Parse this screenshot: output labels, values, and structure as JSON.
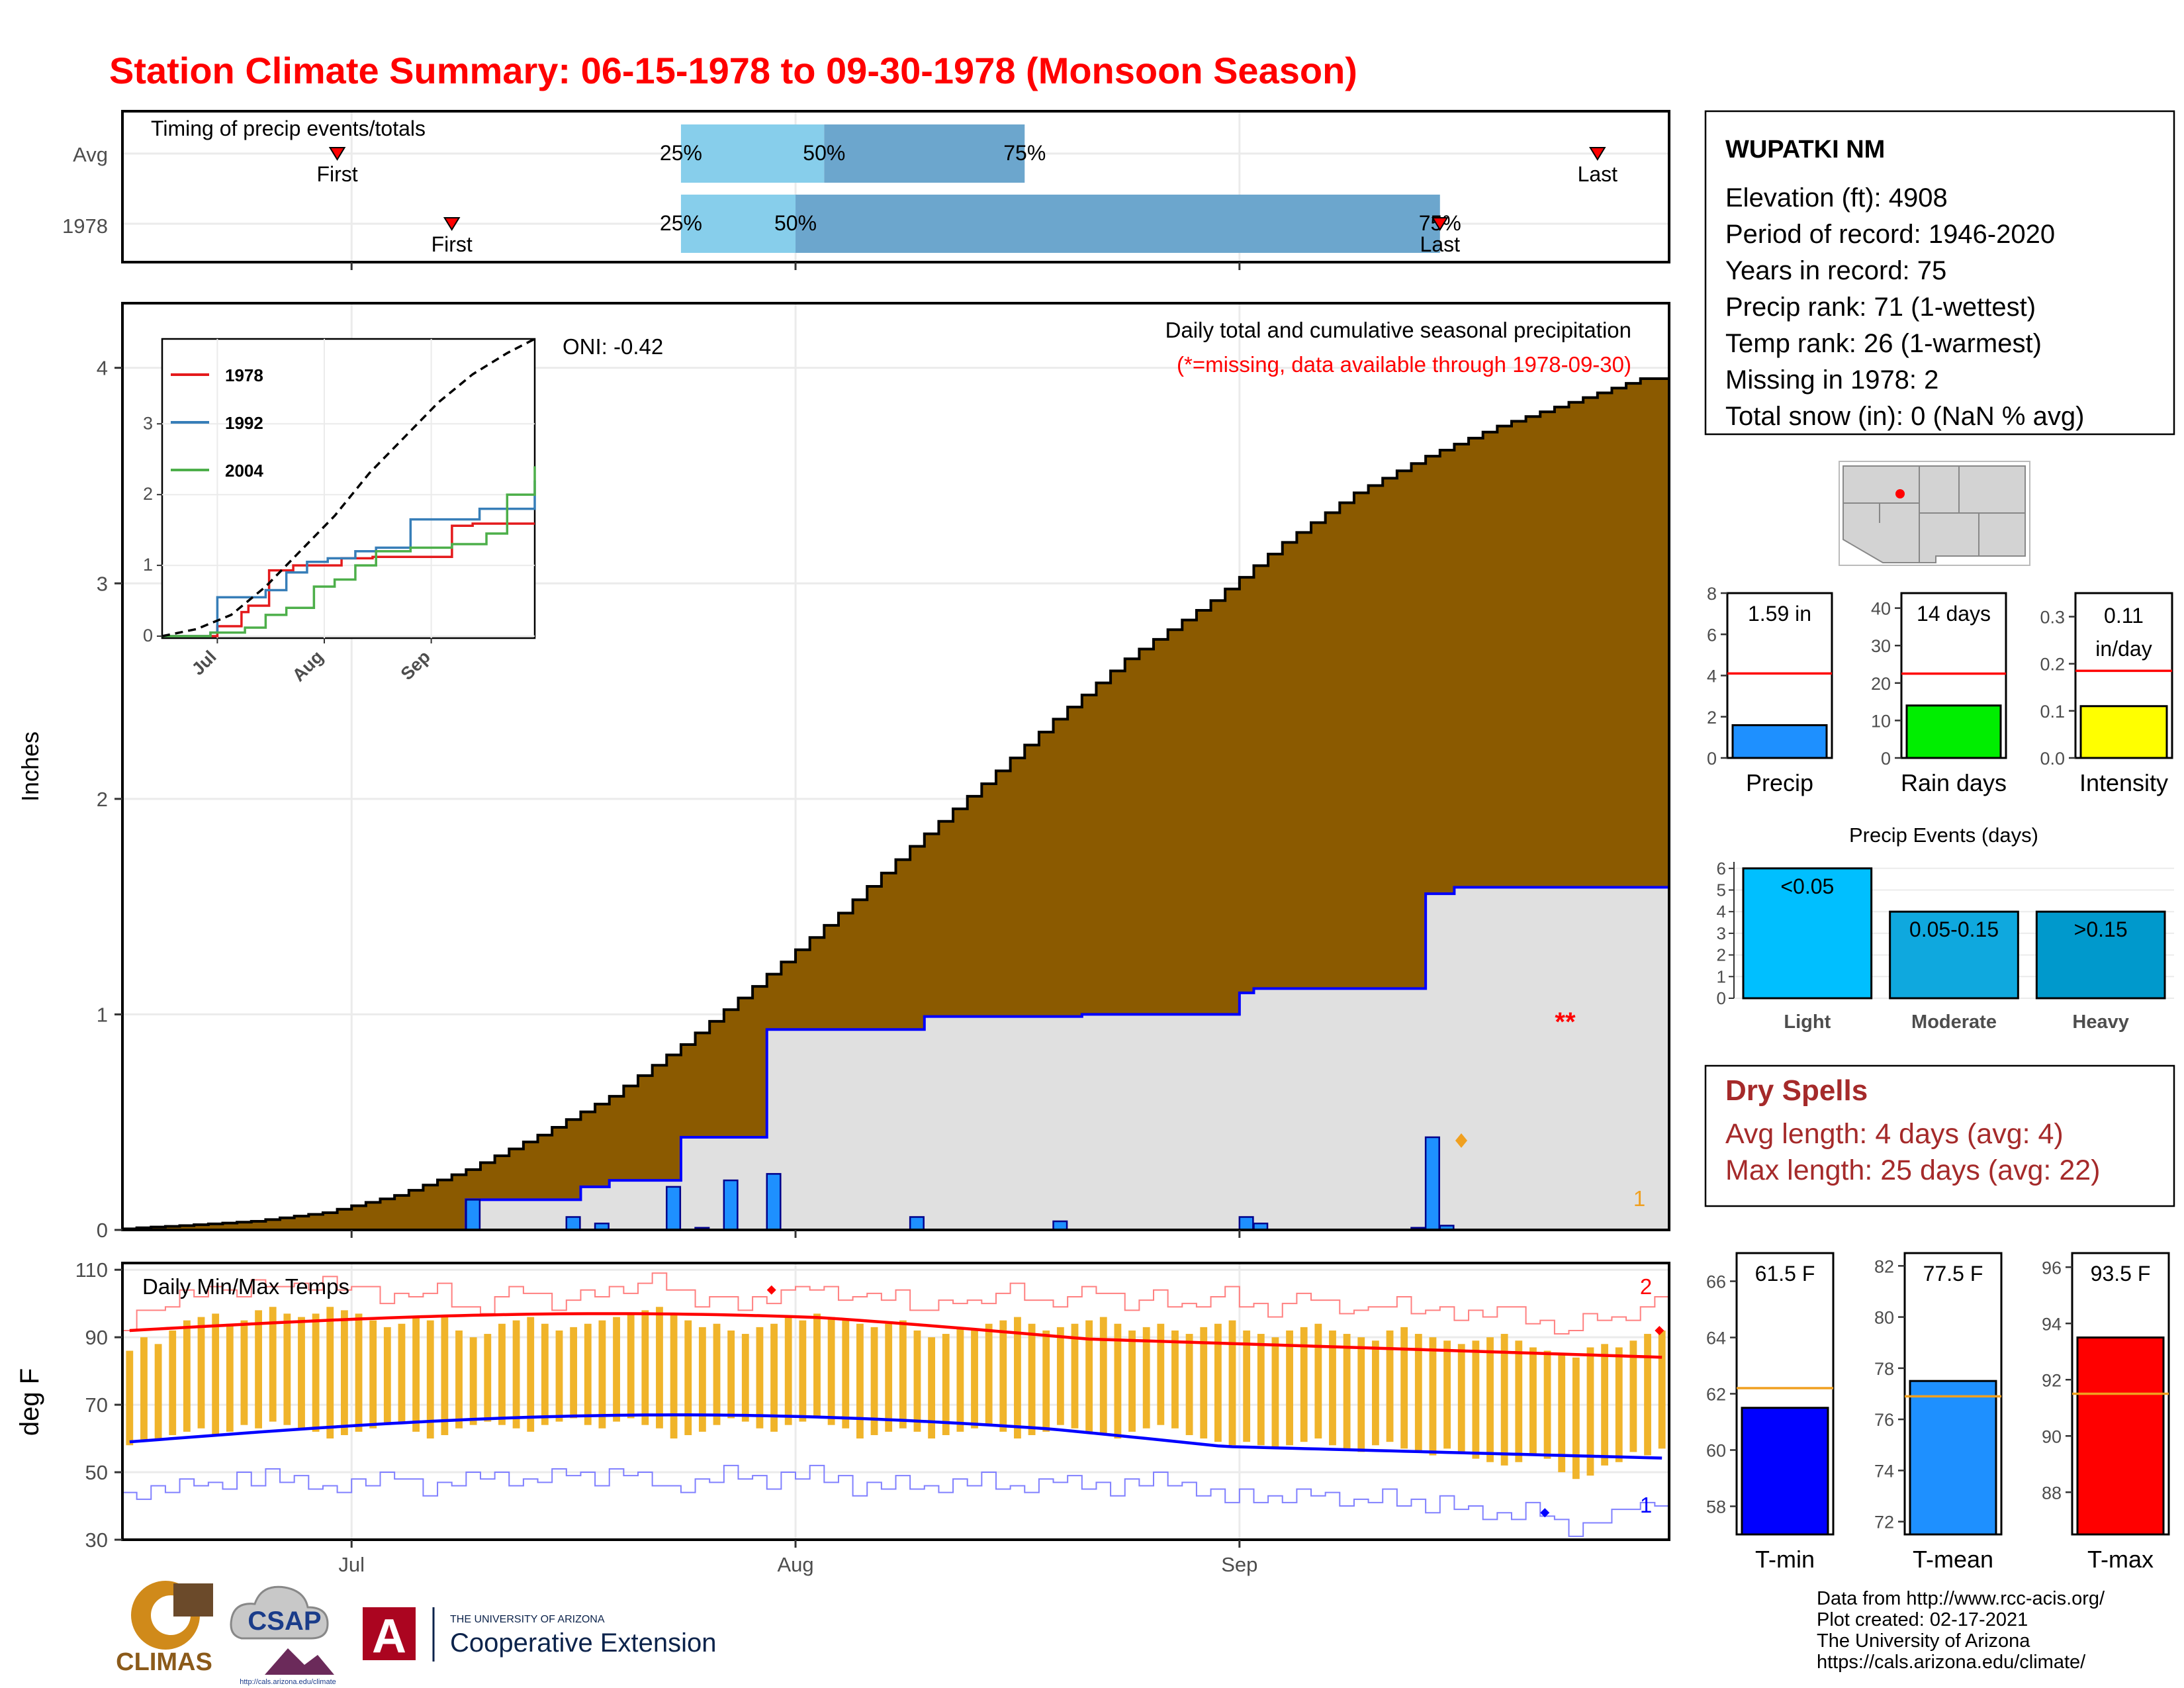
{
  "title": "Station Climate Summary: 06-15-1978 to 09-30-1978 (Monsoon Season)",
  "colors": {
    "title": "#ff0000",
    "precip_cum": "#8b5a00",
    "precip_avg_fill": "#e0e0e0",
    "precip_line": "#0000ff",
    "daily_bar": "#1e90ff",
    "temp_bar": "#f0b42a",
    "tmax_avg": "#ff0000",
    "tmin_avg": "#0000ff",
    "light_blue": "#87ceeb",
    "mid_blue": "#6ca6cd",
    "dry_spells": "#a52a2a"
  },
  "timing": {
    "title": "Timing of precip events/totals",
    "rows": [
      {
        "label": "Avg",
        "first_label": "First",
        "last_label": "Last",
        "first": "1978-06-30",
        "last": "1978-09-26",
        "p25": "1978-07-24",
        "p50": "1978-08-03",
        "p75": "1978-08-17",
        "p25_label": "25%",
        "p50_label": "50%",
        "p75_label": "75%"
      },
      {
        "label": "1978",
        "first_label": "First",
        "last_label": "Last",
        "first": "1978-07-08",
        "last": "1978-09-15",
        "p25": "1978-07-24",
        "p50": "1978-08-01",
        "p75": "1978-09-15",
        "p25_label": "25%",
        "p50_label": "50%",
        "p75_label": "75%"
      }
    ]
  },
  "precip_panel": {
    "ylabel": "Inches",
    "oni": "ONI: -0.42",
    "subtitle": "Daily total and cumulative seasonal precipitation",
    "missing_note": "(*=missing, data available through 1978-09-30)",
    "missing_marker": "**",
    "count_label": "1",
    "yticks": [
      "0",
      "1",
      "2",
      "3",
      "4"
    ],
    "ylim": [
      0,
      4.3
    ]
  },
  "temp_panel": {
    "ylabel": "deg F",
    "title": "Daily Min/Max Temps",
    "yticks": [
      "30",
      "50",
      "70",
      "90",
      "110"
    ],
    "ylim": [
      30,
      112
    ],
    "count_high": "2",
    "count_low": "1"
  },
  "x_axis": {
    "ticks": [
      "Jul",
      "Aug",
      "Sep"
    ]
  },
  "chart_data": [
    {
      "type": "area",
      "title": "Daily total and cumulative seasonal precipitation",
      "ylabel": "Inches",
      "x_range": [
        "1978-06-15",
        "1978-09-30"
      ],
      "ylim": [
        0,
        4.3
      ],
      "series": [
        {
          "name": "Avg cumulative",
          "x": [
            "06-17",
            "06-20",
            "06-25",
            "06-30",
            "07-05",
            "07-10",
            "07-15",
            "07-20",
            "07-25",
            "07-30",
            "08-05",
            "08-10",
            "08-15",
            "08-20",
            "08-25",
            "08-31",
            "09-05",
            "09-10",
            "09-15",
            "09-20",
            "09-25",
            "09-30"
          ],
          "y": [
            0.01,
            0.02,
            0.04,
            0.08,
            0.16,
            0.28,
            0.44,
            0.62,
            0.86,
            1.13,
            1.47,
            1.78,
            2.07,
            2.37,
            2.65,
            2.92,
            3.19,
            3.42,
            3.59,
            3.73,
            3.84,
            3.95
          ]
        },
        {
          "name": "1978 cumulative",
          "x": [
            "06-15",
            "07-09",
            "07-16",
            "07-17",
            "07-19",
            "07-24",
            "07-25",
            "07-30",
            "08-10",
            "08-21",
            "09-01",
            "09-02",
            "09-13",
            "09-14",
            "09-16",
            "09-30"
          ],
          "y": [
            0,
            0.14,
            0.14,
            0.2,
            0.23,
            0.43,
            0.43,
            0.93,
            0.99,
            1.0,
            1.1,
            1.12,
            1.12,
            1.56,
            1.59,
            1.59
          ]
        },
        {
          "name": "1978 daily",
          "x": [
            "07-09",
            "07-16",
            "07-18",
            "07-23",
            "07-25",
            "07-27",
            "07-30",
            "08-09",
            "08-19",
            "09-01",
            "09-02",
            "09-13",
            "09-14",
            "09-15"
          ],
          "y": [
            0.14,
            0.06,
            0.03,
            0.2,
            0.01,
            0.23,
            0.26,
            0.06,
            0.04,
            0.06,
            0.03,
            0.01,
            0.43,
            0.02
          ]
        }
      ]
    },
    {
      "type": "line",
      "title": "",
      "categories": [
        "Jul",
        "Aug",
        "Sep"
      ],
      "ylim": [
        0,
        4.2
      ],
      "series": [
        {
          "name": "1978",
          "x": [
            0,
            16,
            23,
            25,
            31,
            38,
            45,
            52,
            61,
            68,
            84,
            90,
            96,
            108
          ],
          "y": [
            0,
            0.14,
            0.34,
            0.43,
            0.93,
            1.0,
            1.0,
            1.1,
            1.12,
            1.12,
            1.56,
            1.59,
            1.59,
            1.59
          ]
        },
        {
          "name": "1992",
          "x": [
            0,
            14,
            16,
            30,
            36,
            42,
            48,
            56,
            62,
            72,
            84,
            92,
            96,
            108
          ],
          "y": [
            0,
            0.05,
            0.55,
            0.65,
            0.9,
            1.05,
            1.1,
            1.2,
            1.25,
            1.65,
            1.65,
            1.8,
            1.8,
            2.2
          ]
        },
        {
          "name": "2004",
          "x": [
            0,
            14,
            24,
            30,
            36,
            44,
            50,
            56,
            62,
            72,
            84,
            94,
            100,
            108
          ],
          "y": [
            0,
            0.05,
            0.12,
            0.3,
            0.4,
            0.7,
            0.8,
            1.0,
            1.2,
            1.25,
            1.3,
            1.45,
            2.0,
            2.4
          ]
        },
        {
          "name": "Avg",
          "x": [
            0,
            10,
            20,
            30,
            40,
            50,
            60,
            70,
            80,
            90,
            100,
            108
          ],
          "y": [
            0,
            0.1,
            0.3,
            0.7,
            1.2,
            1.7,
            2.3,
            2.8,
            3.3,
            3.7,
            4.0,
            4.2
          ]
        }
      ]
    },
    {
      "type": "bar",
      "title": "Daily Min/Max Temps",
      "ylabel": "deg F",
      "ylim": [
        30,
        112
      ],
      "x_range": [
        "1978-06-15",
        "1978-09-30"
      ],
      "series": [
        {
          "name": "T-max",
          "values": [
            86,
            90,
            88,
            92,
            95,
            96,
            97,
            94,
            95,
            98,
            99,
            97,
            96,
            97,
            99,
            98,
            97,
            95,
            93,
            94,
            96,
            95,
            96,
            92,
            90,
            91,
            94,
            95,
            96,
            94,
            92,
            93,
            94,
            95,
            96,
            97,
            98,
            99,
            97,
            95,
            93,
            94,
            92,
            91,
            93,
            94,
            96,
            95,
            97,
            96,
            95,
            94,
            93,
            94,
            95,
            92,
            90,
            91,
            93,
            92,
            94,
            95,
            96,
            94,
            92,
            93,
            94,
            95,
            96,
            94,
            92,
            93,
            94,
            92,
            91,
            93,
            94,
            95,
            92,
            91,
            90,
            92,
            93,
            94,
            92,
            91,
            90,
            89,
            92,
            93,
            91,
            90,
            89,
            88,
            89,
            90,
            91,
            89,
            87,
            86,
            85,
            84,
            87,
            88,
            87,
            89,
            91,
            92
          ]
        },
        {
          "name": "T-min",
          "values": [
            58,
            59,
            60,
            61,
            62,
            63,
            61,
            62,
            64,
            63,
            65,
            64,
            63,
            62,
            60,
            61,
            62,
            63,
            64,
            65,
            62,
            60,
            61,
            63,
            64,
            65,
            64,
            63,
            62,
            64,
            65,
            66,
            64,
            63,
            65,
            66,
            64,
            63,
            60,
            61,
            62,
            64,
            66,
            65,
            63,
            62,
            64,
            65,
            66,
            64,
            63,
            60,
            61,
            62,
            63,
            62,
            60,
            61,
            62,
            63,
            64,
            62,
            60,
            61,
            62,
            64,
            63,
            62,
            61,
            60,
            62,
            63,
            64,
            63,
            61,
            60,
            59,
            58,
            59,
            58,
            57,
            58,
            59,
            60,
            58,
            57,
            56,
            58,
            59,
            57,
            56,
            55,
            57,
            56,
            54,
            53,
            52,
            53,
            55,
            54,
            50,
            48,
            49,
            52,
            53,
            56,
            55,
            57
          ]
        }
      ]
    },
    {
      "type": "bar",
      "title": "",
      "ylabel": "",
      "ylim": [
        0,
        8
      ],
      "categories": [
        "Precip"
      ],
      "values": [
        1.59
      ],
      "reference": 4.1,
      "data_label": "1.59 in"
    },
    {
      "type": "bar",
      "title": "",
      "ylabel": "",
      "ylim": [
        0,
        44
      ],
      "categories": [
        "Rain days"
      ],
      "values": [
        14
      ],
      "reference": 22.5,
      "data_label": "14 days"
    },
    {
      "type": "bar",
      "title": "",
      "ylabel": "",
      "ylim": [
        0,
        0.35
      ],
      "categories": [
        "Intensity"
      ],
      "values": [
        0.11
      ],
      "reference": 0.185,
      "data_label": "0.11 in/day"
    },
    {
      "type": "bar",
      "title": "Precip Events (days)",
      "ylim": [
        0,
        6.3
      ],
      "categories": [
        "Light",
        "Moderate",
        "Heavy"
      ],
      "values": [
        6,
        4,
        4
      ],
      "data_labels": [
        "<0.05",
        "0.05-0.15",
        ">0.15"
      ]
    },
    {
      "type": "bar",
      "title": "",
      "ylim": [
        57,
        67
      ],
      "categories": [
        "T-min"
      ],
      "values": [
        61.5
      ],
      "reference": 62.2,
      "data_label": "61.5 F"
    },
    {
      "type": "bar",
      "title": "",
      "ylim": [
        71.5,
        82.5
      ],
      "categories": [
        "T-mean"
      ],
      "values": [
        77.5
      ],
      "reference": 76.9,
      "data_label": "77.5 F"
    },
    {
      "type": "bar",
      "title": "",
      "ylim": [
        86.5,
        96.5
      ],
      "categories": [
        "T-max"
      ],
      "values": [
        93.5
      ],
      "reference": 91.5,
      "data_label": "93.5 F"
    }
  ],
  "mini_bars": {
    "precip": {
      "yticks": [
        "0",
        "2",
        "4",
        "6",
        "8"
      ],
      "label": "Precip"
    },
    "raindays": {
      "yticks": [
        "0",
        "10",
        "20",
        "30",
        "40"
      ],
      "label": "Rain days"
    },
    "intensity": {
      "yticks": [
        "0.0",
        "0.1",
        "0.2",
        "0.3"
      ],
      "label": "Intensity",
      "value_line1": "0.11",
      "value_line2": "in/day"
    },
    "events": {
      "yticks": [
        "0",
        "1",
        "2",
        "3",
        "4",
        "5",
        "6"
      ]
    },
    "tmin": {
      "yticks": [
        "58",
        "60",
        "62",
        "64",
        "66"
      ],
      "label": "T-min"
    },
    "tmean": {
      "yticks": [
        "72",
        "74",
        "76",
        "78",
        "80",
        "82"
      ],
      "label": "T-mean"
    },
    "tmax": {
      "yticks": [
        "88",
        "90",
        "92",
        "94",
        "96"
      ],
      "label": "T-max"
    }
  },
  "inset": {
    "yticks": [
      "0",
      "1",
      "2",
      "3"
    ],
    "xticks": [
      "Jul",
      "Aug",
      "Sep"
    ],
    "legend": [
      "1978",
      "1992",
      "2004"
    ],
    "legend_colors": [
      "#e41a1c",
      "#377eb8",
      "#4daf4a"
    ]
  },
  "station": {
    "name": "WUPATKI NM",
    "lines": [
      "Elevation (ft): 4908",
      "Period of record: 1946-2020",
      "Years in record: 75",
      "Precip rank: 71 (1-wettest)",
      "Temp rank: 26 (1-warmest)",
      "Missing in 1978: 2",
      "Total snow (in): 0 (NaN % avg)"
    ]
  },
  "dry_spells": {
    "title": "Dry Spells",
    "avg_line": "Avg length: 4 days (avg: 4)",
    "max_line": "Max length: 25 days (avg: 22)"
  },
  "footer": {
    "lines": [
      "Data from http://www.rcc-acis.org/",
      "Plot created: 02-17-2021",
      "The University of Arizona",
      "https://cals.arizona.edu/climate/"
    ]
  },
  "logos": {
    "climas": "CLIMAS",
    "csap": "CSAP",
    "csap_url": "http://cals.arizona.edu/climate",
    "ua_top": "THE UNIVERSITY OF ARIZONA",
    "ua_bottom": "Cooperative Extension",
    "ua_letter": "A"
  }
}
